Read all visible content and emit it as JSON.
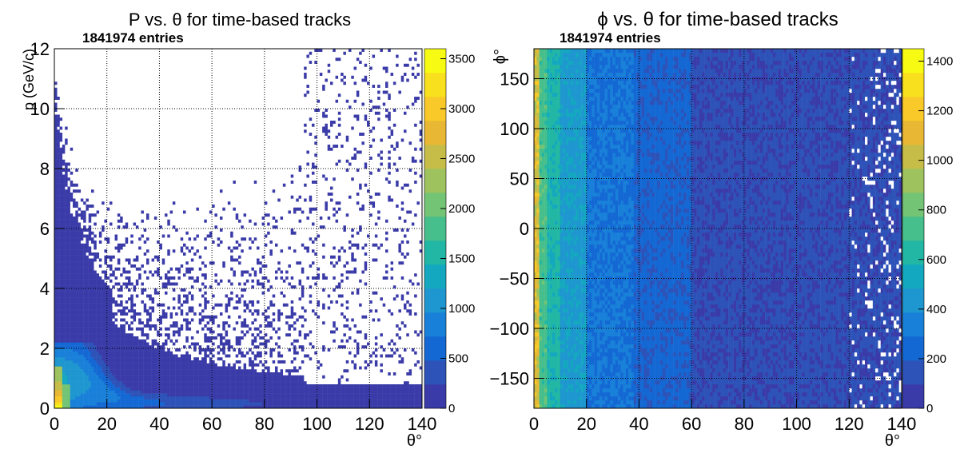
{
  "chart_data": [
    {
      "type": "heatmap",
      "title": "P vs. θ for time-based tracks",
      "entries": "1841974 entries",
      "xlabel": "θ°",
      "ylabel": "p (GeV/c)",
      "xlim": [
        0,
        140
      ],
      "ylim": [
        0,
        12
      ],
      "x_ticks": [
        0,
        20,
        40,
        60,
        80,
        100,
        120,
        140
      ],
      "y_ticks": [
        0,
        2,
        4,
        6,
        8,
        10,
        12
      ],
      "zlim": [
        0,
        3600
      ],
      "z_ticks": [
        0,
        500,
        1000,
        1500,
        2000,
        2500,
        3000,
        3500
      ],
      "grid": true,
      "colormap": "parula",
      "description_points": {
        "theta": [
          2,
          5,
          10,
          20,
          30,
          40,
          60,
          80,
          100,
          120,
          140
        ],
        "p_peak": [
          0.6,
          1.2,
          1.5,
          1.1,
          0.9,
          0.75,
          0.55,
          0.45,
          0.35,
          0.3,
          0.3
        ],
        "max_count_near_theta_deg": 2,
        "max_count": 3600
      }
    },
    {
      "type": "heatmap",
      "title": "ϕ vs. θ for time-based tracks",
      "entries": "1841974 entries",
      "xlabel": "θ°",
      "ylabel": "ϕ°",
      "xlim": [
        0,
        140
      ],
      "ylim": [
        -180,
        180
      ],
      "x_ticks": [
        0,
        20,
        40,
        60,
        80,
        100,
        120,
        140
      ],
      "y_ticks": [
        -150,
        -100,
        -50,
        0,
        50,
        100,
        150
      ],
      "y_tick_labels": [
        "−150",
        "−100",
        "−50",
        "0",
        "50",
        "100",
        "150"
      ],
      "zlim": [
        0,
        1450
      ],
      "z_ticks": [
        0,
        200,
        400,
        600,
        800,
        1000,
        1200,
        1400
      ],
      "z_tick_labels": [
        "0",
        "200",
        "400",
        "600",
        "800",
        "1000",
        "1200",
        "1400"
      ],
      "grid": true,
      "colormap": "parula",
      "description_points": {
        "theta_bands": [
          [
            0,
            2
          ],
          [
            2,
            10
          ],
          [
            10,
            20
          ],
          [
            20,
            38
          ],
          [
            38,
            60
          ],
          [
            60,
            120
          ],
          [
            120,
            140
          ]
        ],
        "band_counts": [
          1200,
          700,
          450,
          280,
          200,
          120,
          60
        ]
      }
    }
  ]
}
